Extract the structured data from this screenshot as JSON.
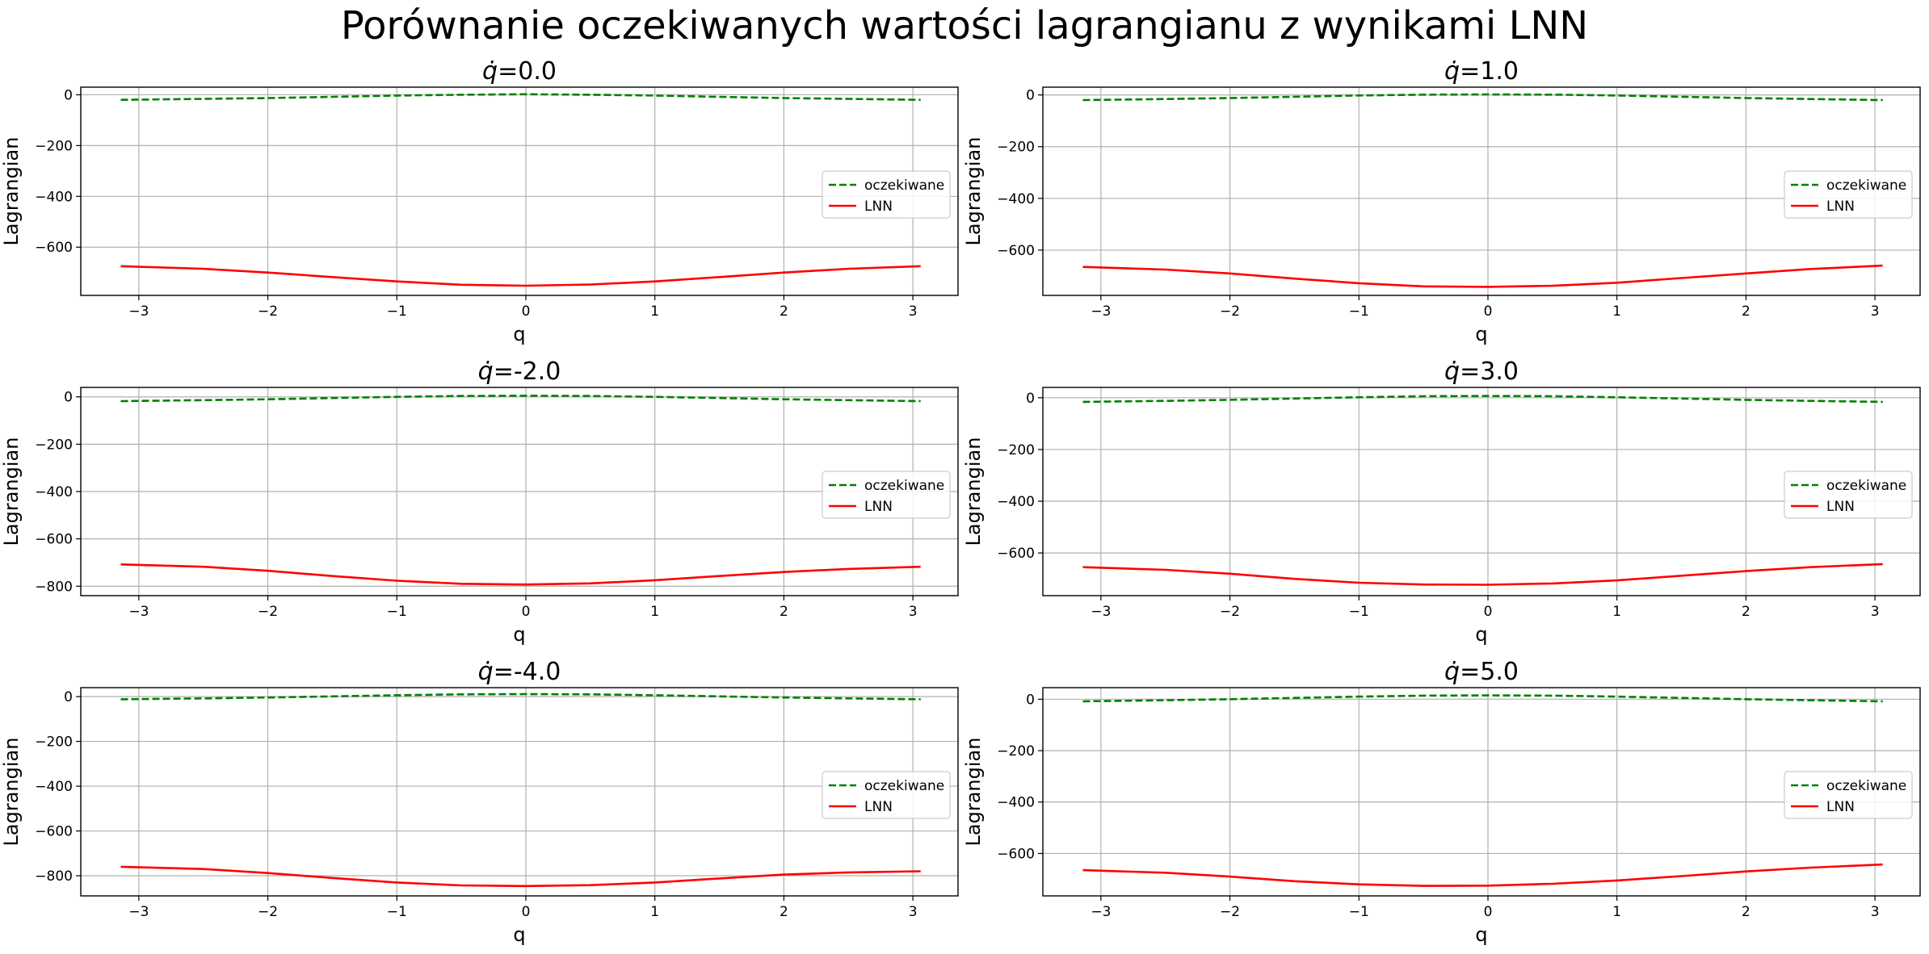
{
  "suptitle": "Porównanie oczekiwanych wartości lagrangianu z wynikami LNN",
  "colors": {
    "expected": "#008000",
    "lnn": "#ff0000",
    "grid": "#b0b0b0",
    "axes": "#000000"
  },
  "chart_data": [
    {
      "type": "line",
      "title_prefix": "q̇",
      "title_value": "=0.0",
      "xlabel": "q",
      "ylabel": "Lagrangian",
      "xlim": [
        -3.45,
        3.35
      ],
      "ylim": [
        -790,
        30
      ],
      "xticks": [
        -3,
        -2,
        -1,
        0,
        1,
        2,
        3
      ],
      "yticks": [
        0,
        -200,
        -400,
        -600
      ],
      "xtick_labels": [
        "−3",
        "−2",
        "−1",
        "0",
        "1",
        "2",
        "3"
      ],
      "ytick_labels": [
        "0",
        "−200",
        "−400",
        "−600"
      ],
      "grid": true,
      "legend_position": "center-right",
      "x": [
        -3.14,
        -2.5,
        -2.0,
        -1.5,
        -1.0,
        -0.5,
        0.0,
        0.5,
        1.0,
        1.5,
        2.0,
        2.5,
        3.06
      ],
      "series": [
        {
          "name": "oczekiwane",
          "style": "dashed",
          "values": [
            -20,
            -16,
            -13,
            -8,
            -3,
            0,
            2,
            0,
            -3,
            -8,
            -13,
            -16,
            -20
          ]
        },
        {
          "name": "LNN",
          "style": "solid",
          "values": [
            -675,
            -685,
            -700,
            -718,
            -735,
            -748,
            -752,
            -747,
            -735,
            -718,
            -700,
            -685,
            -675
          ]
        }
      ]
    },
    {
      "type": "line",
      "title_prefix": "q̇",
      "title_value": "=1.0",
      "xlabel": "q",
      "ylabel": "Lagrangian",
      "xlim": [
        -3.45,
        3.35
      ],
      "ylim": [
        -775,
        30
      ],
      "xticks": [
        -3,
        -2,
        -1,
        0,
        1,
        2,
        3
      ],
      "yticks": [
        0,
        -200,
        -400,
        -600
      ],
      "xtick_labels": [
        "−3",
        "−2",
        "−1",
        "0",
        "1",
        "2",
        "3"
      ],
      "ytick_labels": [
        "0",
        "−200",
        "−400",
        "−600"
      ],
      "grid": true,
      "legend_position": "center-right",
      "x": [
        -3.14,
        -2.5,
        -2.0,
        -1.5,
        -1.0,
        -0.5,
        0.0,
        0.5,
        1.0,
        1.5,
        2.0,
        2.5,
        3.06
      ],
      "series": [
        {
          "name": "oczekiwane",
          "style": "dashed",
          "values": [
            -20,
            -16,
            -12,
            -7,
            -2,
            1,
            2,
            1,
            -2,
            -7,
            -12,
            -16,
            -20
          ]
        },
        {
          "name": "LNN",
          "style": "solid",
          "values": [
            -665,
            -675,
            -690,
            -710,
            -728,
            -740,
            -742,
            -738,
            -726,
            -708,
            -690,
            -673,
            -660
          ]
        }
      ]
    },
    {
      "type": "line",
      "title_prefix": "q̇",
      "title_value": "=-2.0",
      "xlabel": "q",
      "ylabel": "Lagrangian",
      "xlim": [
        -3.45,
        3.35
      ],
      "ylim": [
        -840,
        40
      ],
      "xticks": [
        -3,
        -2,
        -1,
        0,
        1,
        2,
        3
      ],
      "yticks": [
        0,
        -200,
        -400,
        -600,
        -800
      ],
      "xtick_labels": [
        "−3",
        "−2",
        "−1",
        "0",
        "1",
        "2",
        "3"
      ],
      "ytick_labels": [
        "0",
        "−200",
        "−400",
        "−600",
        "−800"
      ],
      "grid": true,
      "legend_position": "center-right",
      "x": [
        -3.14,
        -2.5,
        -2.0,
        -1.5,
        -1.0,
        -0.5,
        0.0,
        0.5,
        1.0,
        1.5,
        2.0,
        2.5,
        3.06
      ],
      "series": [
        {
          "name": "oczekiwane",
          "style": "dashed",
          "values": [
            -18,
            -14,
            -10,
            -5,
            0,
            4,
            5,
            4,
            0,
            -5,
            -10,
            -14,
            -18
          ]
        },
        {
          "name": "LNN",
          "style": "solid",
          "values": [
            -708,
            -718,
            -735,
            -757,
            -777,
            -790,
            -793,
            -788,
            -775,
            -757,
            -740,
            -727,
            -718
          ]
        }
      ]
    },
    {
      "type": "line",
      "title_prefix": "q̇",
      "title_value": "=3.0",
      "xlabel": "q",
      "ylabel": "Lagrangian",
      "xlim": [
        -3.45,
        3.35
      ],
      "ylim": [
        -765,
        40
      ],
      "xticks": [
        -3,
        -2,
        -1,
        0,
        1,
        2,
        3
      ],
      "yticks": [
        0,
        -200,
        -400,
        -600
      ],
      "xtick_labels": [
        "−3",
        "−2",
        "−1",
        "0",
        "1",
        "2",
        "3"
      ],
      "ytick_labels": [
        "0",
        "−200",
        "−400",
        "−600"
      ],
      "grid": true,
      "legend_position": "center-right",
      "x": [
        -3.14,
        -2.5,
        -2.0,
        -1.5,
        -1.0,
        -0.5,
        0.0,
        0.5,
        1.0,
        1.5,
        2.0,
        2.5,
        3.06
      ],
      "series": [
        {
          "name": "oczekiwane",
          "style": "dashed",
          "values": [
            -16,
            -12,
            -8,
            -3,
            2,
            6,
            7,
            6,
            2,
            -3,
            -8,
            -12,
            -16
          ]
        },
        {
          "name": "LNN",
          "style": "solid",
          "values": [
            -655,
            -665,
            -680,
            -700,
            -715,
            -722,
            -723,
            -718,
            -706,
            -688,
            -670,
            -655,
            -643
          ]
        }
      ]
    },
    {
      "type": "line",
      "title_prefix": "q̇",
      "title_value": "=-4.0",
      "xlabel": "q",
      "ylabel": "Lagrangian",
      "xlim": [
        -3.45,
        3.35
      ],
      "ylim": [
        -890,
        40
      ],
      "xticks": [
        -3,
        -2,
        -1,
        0,
        1,
        2,
        3
      ],
      "yticks": [
        0,
        -200,
        -400,
        -600,
        -800
      ],
      "xtick_labels": [
        "−3",
        "−2",
        "−1",
        "0",
        "1",
        "2",
        "3"
      ],
      "ytick_labels": [
        "0",
        "−200",
        "−400",
        "−600",
        "−800"
      ],
      "grid": true,
      "legend_position": "center-right",
      "x": [
        -3.14,
        -2.5,
        -2.0,
        -1.5,
        -1.0,
        -0.5,
        0.0,
        0.5,
        1.0,
        1.5,
        2.0,
        2.5,
        3.06
      ],
      "series": [
        {
          "name": "oczekiwane",
          "style": "dashed",
          "values": [
            -12,
            -8,
            -4,
            1,
            6,
            10,
            11,
            10,
            6,
            1,
            -4,
            -8,
            -12
          ]
        },
        {
          "name": "LNN",
          "style": "solid",
          "values": [
            -760,
            -770,
            -788,
            -810,
            -830,
            -843,
            -846,
            -842,
            -830,
            -812,
            -795,
            -785,
            -780
          ]
        }
      ]
    },
    {
      "type": "line",
      "title_prefix": "q̇",
      "title_value": "=5.0",
      "xlabel": "q",
      "ylabel": "Lagrangian",
      "xlim": [
        -3.45,
        3.35
      ],
      "ylim": [
        -765,
        45
      ],
      "xticks": [
        -3,
        -2,
        -1,
        0,
        1,
        2,
        3
      ],
      "yticks": [
        0,
        -200,
        -400,
        -600
      ],
      "xtick_labels": [
        "−3",
        "−2",
        "−1",
        "0",
        "1",
        "2",
        "3"
      ],
      "ytick_labels": [
        "0",
        "−200",
        "−400",
        "−600"
      ],
      "grid": true,
      "legend_position": "center-right",
      "x": [
        -3.14,
        -2.5,
        -2.0,
        -1.5,
        -1.0,
        -0.5,
        0.0,
        0.5,
        1.0,
        1.5,
        2.0,
        2.5,
        3.06
      ],
      "series": [
        {
          "name": "oczekiwane",
          "style": "dashed",
          "values": [
            -8,
            -4,
            0,
            5,
            10,
            14,
            15,
            14,
            10,
            5,
            0,
            -4,
            -8
          ]
        },
        {
          "name": "LNN",
          "style": "solid",
          "values": [
            -665,
            -675,
            -690,
            -708,
            -720,
            -726,
            -725,
            -718,
            -705,
            -688,
            -670,
            -655,
            -643
          ]
        }
      ]
    }
  ]
}
